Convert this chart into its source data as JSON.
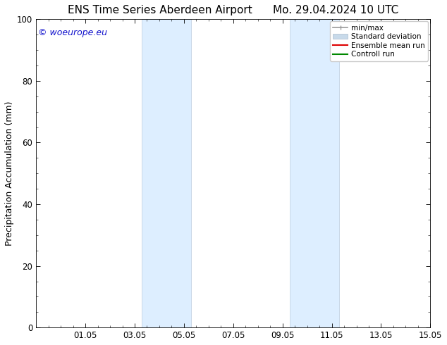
{
  "title": "ENS Time Series Aberdeen Airport      Mo. 29.04.2024 10 UTC",
  "ylabel": "Precipitation Accumulation (mm)",
  "ylim": [
    0,
    100
  ],
  "xlim": [
    0,
    16
  ],
  "xtick_labels": [
    "01.05",
    "03.05",
    "05.05",
    "07.05",
    "09.05",
    "11.05",
    "13.05",
    "15.05"
  ],
  "xtick_positions": [
    2,
    4,
    6,
    8,
    10,
    12,
    14,
    16
  ],
  "ytick_labels": [
    "0",
    "20",
    "40",
    "60",
    "80",
    "100"
  ],
  "ytick_positions": [
    0,
    20,
    40,
    60,
    80,
    100
  ],
  "shaded_bands": [
    {
      "x_start": 4.3,
      "x_end": 6.3
    },
    {
      "x_start": 10.3,
      "x_end": 12.3
    }
  ],
  "band_color": "#ddeeff",
  "band_edge_color": "#bbccdd",
  "copyright_text": "© woeurope.eu",
  "copyright_color": "#1111cc",
  "legend_items": [
    {
      "label": "min/max",
      "color": "#999999",
      "lw": 1.2
    },
    {
      "label": "Standard deviation",
      "color": "#c8daea",
      "lw": 7
    },
    {
      "label": "Ensemble mean run",
      "color": "#dd0000",
      "lw": 1.5
    },
    {
      "label": "Controll run",
      "color": "#008800",
      "lw": 1.5
    }
  ],
  "title_fontsize": 11,
  "ylabel_fontsize": 9,
  "tick_fontsize": 8.5,
  "legend_fontsize": 7.5,
  "copyright_fontsize": 9,
  "background_color": "#ffffff"
}
